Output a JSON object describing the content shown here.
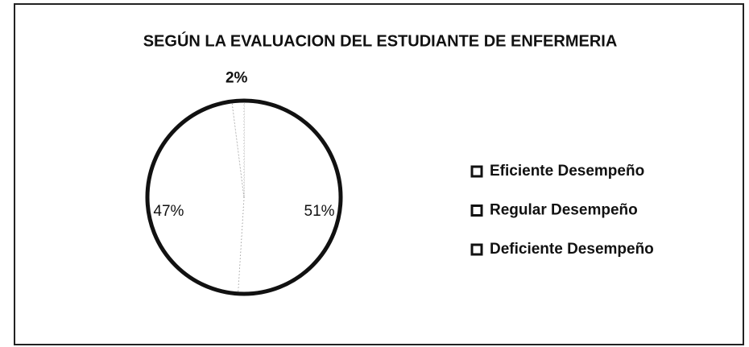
{
  "chart_data": {
    "type": "pie",
    "title": "SEGÚN LA EVALUACION DEL ESTUDIANTE DE ENFERMERIA",
    "categories": [
      "Eficiente Desempeño",
      "Regular Desempeño",
      "Deficiente Desempeño"
    ],
    "values": [
      51,
      47,
      2
    ],
    "value_labels": [
      "51%",
      "47%",
      "2%"
    ],
    "colors": [
      "#ffffff",
      "#ffffff",
      "#ffffff"
    ],
    "legend": "right"
  }
}
